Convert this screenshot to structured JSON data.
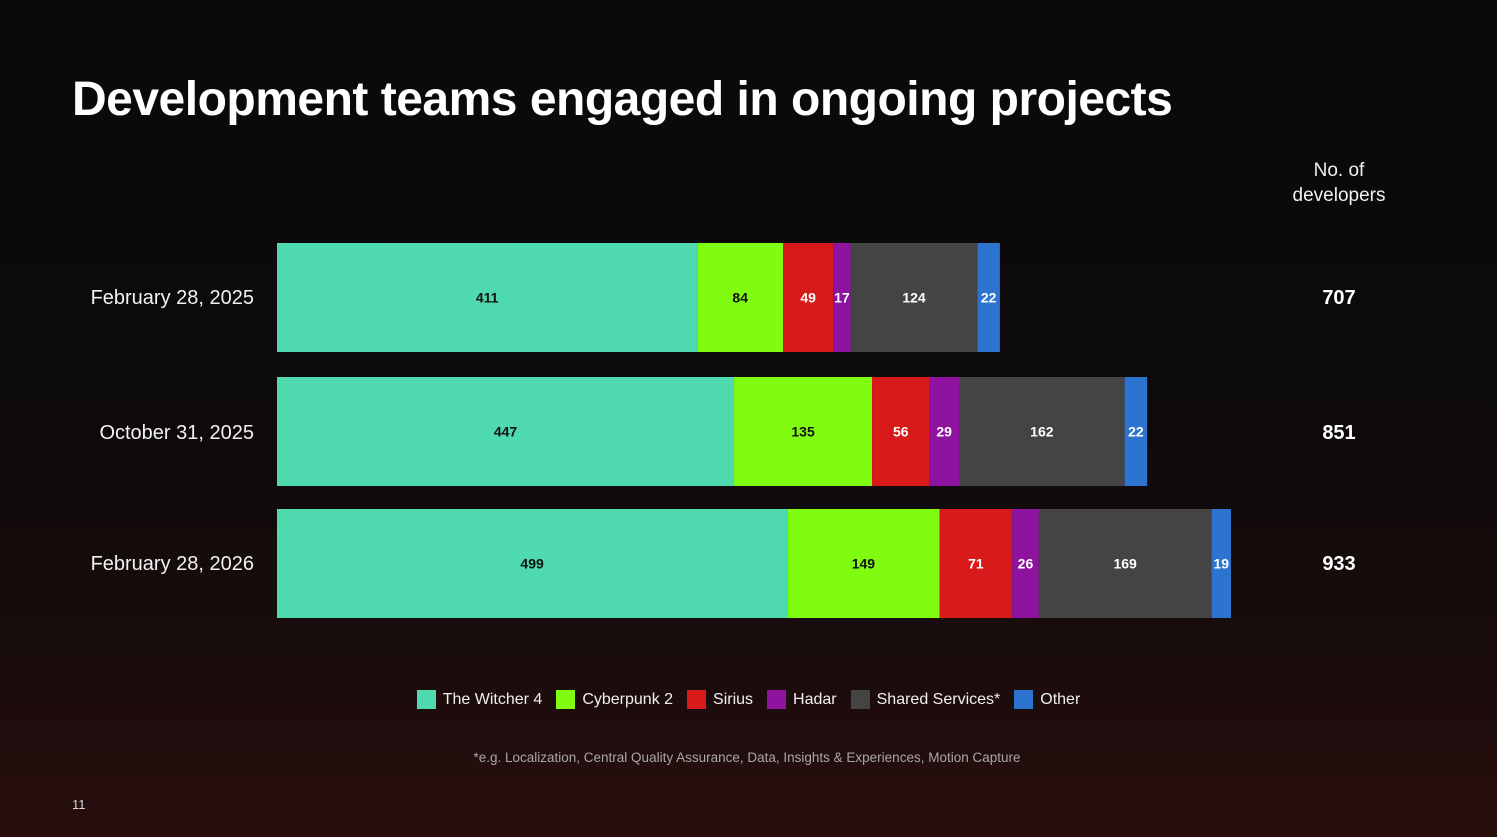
{
  "page": {
    "title": "Development teams engaged in ongoing projects",
    "total_header_line1": "No. of",
    "total_header_line2": "developers",
    "footnote": "*e.g. Localization, Central Quality Assurance, Data, Insights & Experiences, Motion Capture",
    "page_number": "11"
  },
  "chart_data": {
    "type": "bar",
    "orientation": "horizontal",
    "stacked": true,
    "title": "Development teams engaged in ongoing projects",
    "categories": [
      "February 28, 2025",
      "October 31, 2025",
      "February 28, 2026"
    ],
    "series": [
      {
        "name": "The Witcher 4",
        "color": "#4fd9ae",
        "label_color": "#111111",
        "values": [
          411,
          447,
          499
        ]
      },
      {
        "name": "Cyberpunk 2",
        "color": "#80fc10",
        "label_color": "#111111",
        "values": [
          84,
          135,
          149
        ]
      },
      {
        "name": "Sirius",
        "color": "#d81a1a",
        "label_color": "#ffffff",
        "values": [
          49,
          56,
          71
        ]
      },
      {
        "name": "Hadar",
        "color": "#8e14a0",
        "label_color": "#ffffff",
        "values": [
          17,
          29,
          26
        ]
      },
      {
        "name": "Shared Services*",
        "color": "#444444",
        "label_color": "#ffffff",
        "values": [
          124,
          162,
          169
        ]
      },
      {
        "name": "Other",
        "color": "#2d74d0",
        "label_color": "#ffffff",
        "values": [
          22,
          22,
          19
        ]
      }
    ],
    "totals": [
      707,
      851,
      933
    ],
    "legend_position": "bottom-center",
    "grid": false
  }
}
